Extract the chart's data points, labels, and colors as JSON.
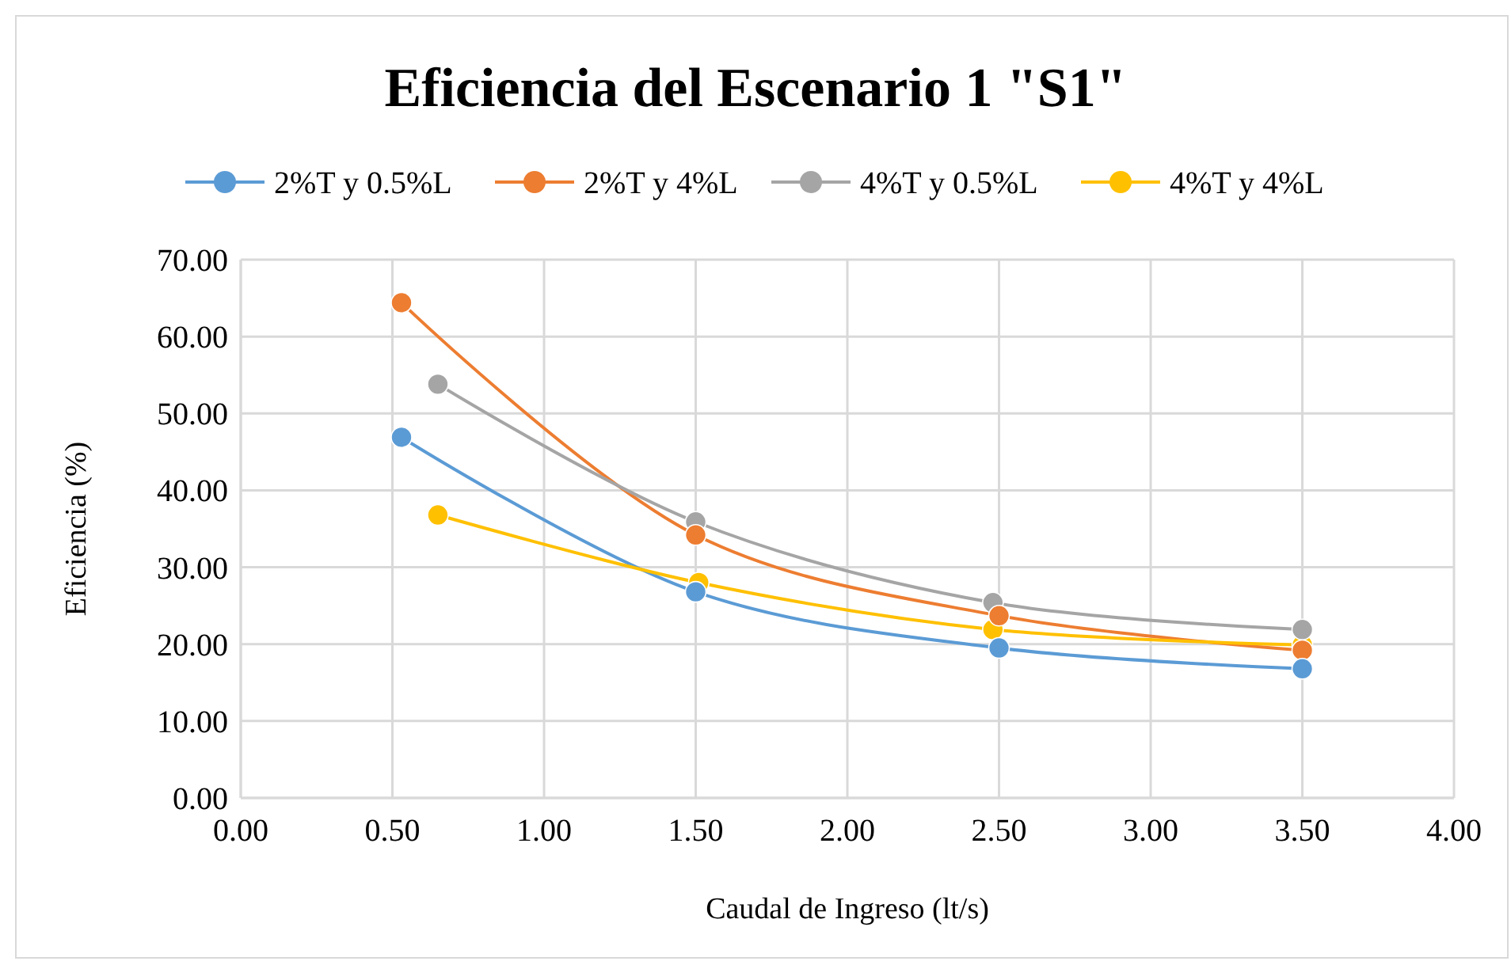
{
  "chart_data": {
    "type": "line",
    "title": "Eficiencia del Escenario 1 \"S1\"",
    "xlabel": "Caudal de Ingreso (lt/s)",
    "ylabel": "Eficiencia  (%)",
    "series": [
      {
        "name": "2%T y 0.5%L",
        "color": "#5b9bd5",
        "x": [
          0.53,
          1.5,
          2.5,
          3.5
        ],
        "values": [
          46.9,
          26.8,
          19.5,
          16.8
        ]
      },
      {
        "name": "2%T y 4%L",
        "color": "#ed7d31",
        "x": [
          0.53,
          1.5,
          2.5,
          3.5
        ],
        "values": [
          64.4,
          34.2,
          23.7,
          19.2
        ]
      },
      {
        "name": "4%T y 0.5%L",
        "color": "#a5a5a5",
        "x": [
          0.65,
          1.5,
          2.48,
          3.5
        ],
        "values": [
          53.8,
          35.9,
          25.4,
          21.9
        ]
      },
      {
        "name": "4%T y 4%L",
        "color": "#ffc000",
        "x": [
          0.65,
          1.51,
          2.48,
          3.5
        ],
        "values": [
          36.8,
          28.0,
          21.9,
          19.9
        ]
      }
    ],
    "xlim": [
      0,
      4
    ],
    "xticks": [
      {
        "value": 0,
        "label": "0.00"
      },
      {
        "value": 0.5,
        "label": "0.50"
      },
      {
        "value": 1,
        "label": "1.00"
      },
      {
        "value": 1.5,
        "label": "1.50"
      },
      {
        "value": 2,
        "label": "2.00"
      },
      {
        "value": 2.5,
        "label": "2.50"
      },
      {
        "value": 3,
        "label": "3.00"
      },
      {
        "value": 3.5,
        "label": "3.50"
      },
      {
        "value": 4,
        "label": "4.00"
      }
    ],
    "ylim": [
      0,
      70
    ],
    "yticks": [
      {
        "value": 0,
        "label": "0.00"
      },
      {
        "value": 10,
        "label": "10.00"
      },
      {
        "value": 20,
        "label": "20.00"
      },
      {
        "value": 30,
        "label": "30.00"
      },
      {
        "value": 40,
        "label": "40.00"
      },
      {
        "value": 50,
        "label": "50.00"
      },
      {
        "value": 60,
        "label": "60.00"
      },
      {
        "value": 70,
        "label": "70.00"
      }
    ],
    "grid": true,
    "legend": "top",
    "marker": "circle",
    "line_style": "solid"
  }
}
